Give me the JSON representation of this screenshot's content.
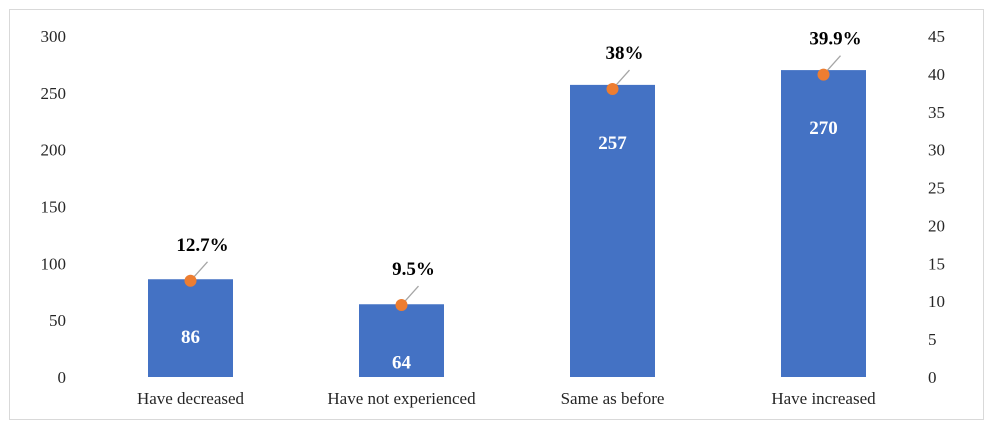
{
  "chart_data": {
    "type": "bar",
    "categories": [
      "Have decreased",
      "Have not experienced",
      "Same as before",
      "Have increased"
    ],
    "series": [
      {
        "values": [
          86,
          64,
          257,
          270
        ],
        "axis": "left",
        "color": "#4472C4",
        "data_labels": [
          "86",
          "64",
          "257",
          "270"
        ]
      },
      {
        "values": [
          12.7,
          9.5,
          38,
          39.9
        ],
        "axis": "right",
        "kind": "marker",
        "color": "#ED7D31",
        "data_labels": [
          "12.7%",
          "9.5%",
          "38%",
          "39.9%"
        ]
      }
    ],
    "ylim": [
      0,
      300
    ],
    "y_ticks": [
      "0",
      "50",
      "100",
      "150",
      "200",
      "250",
      "300"
    ],
    "y2lim": [
      0,
      45
    ],
    "y2_ticks": [
      "0",
      "5",
      "10",
      "15",
      "20",
      "25",
      "30",
      "35",
      "40",
      "45"
    ],
    "grid": false,
    "legend": "none"
  }
}
